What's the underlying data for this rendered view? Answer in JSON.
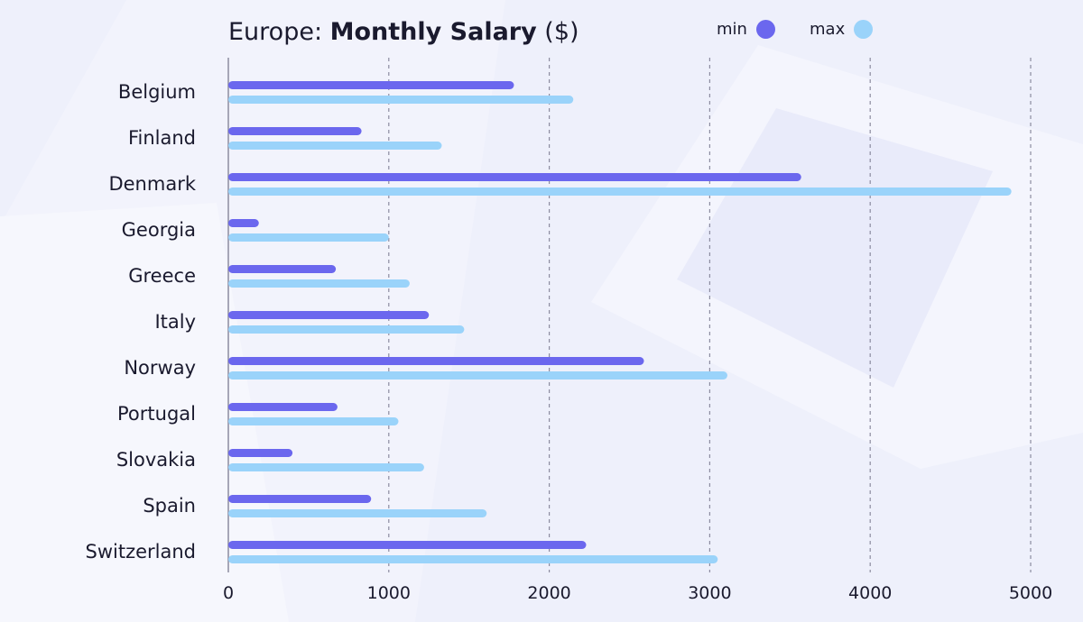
{
  "title_regular": "Europe: ",
  "title_bold": "Monthly Salary",
  "title_suffix": " ($)",
  "legend": [
    {
      "label": "min",
      "color": "#6b67ee"
    },
    {
      "label": "max",
      "color": "#9ad3fa"
    }
  ],
  "chart_data": {
    "type": "bar",
    "orientation": "horizontal",
    "title": "Europe: Monthly Salary ($)",
    "categories": [
      "Belgium",
      "Finland",
      "Denmark",
      "Georgia",
      "Greece",
      "Italy",
      "Norway",
      "Portugal",
      "Slovakia",
      "Spain",
      "Switzerland"
    ],
    "series": [
      {
        "name": "min",
        "color": "#6b67ee",
        "values": [
          1780,
          830,
          3570,
          190,
          670,
          1250,
          2590,
          680,
          400,
          890,
          2230
        ]
      },
      {
        "name": "max",
        "color": "#9ad3fa",
        "values": [
          2150,
          1330,
          4880,
          1000,
          1130,
          1470,
          3110,
          1060,
          1220,
          1610,
          3050
        ]
      }
    ],
    "xlim": [
      0,
      5000
    ],
    "xticks": [
      0,
      1000,
      2000,
      3000,
      4000,
      5000
    ],
    "grid": "vertical-dashed",
    "legend_position": "top-right"
  }
}
